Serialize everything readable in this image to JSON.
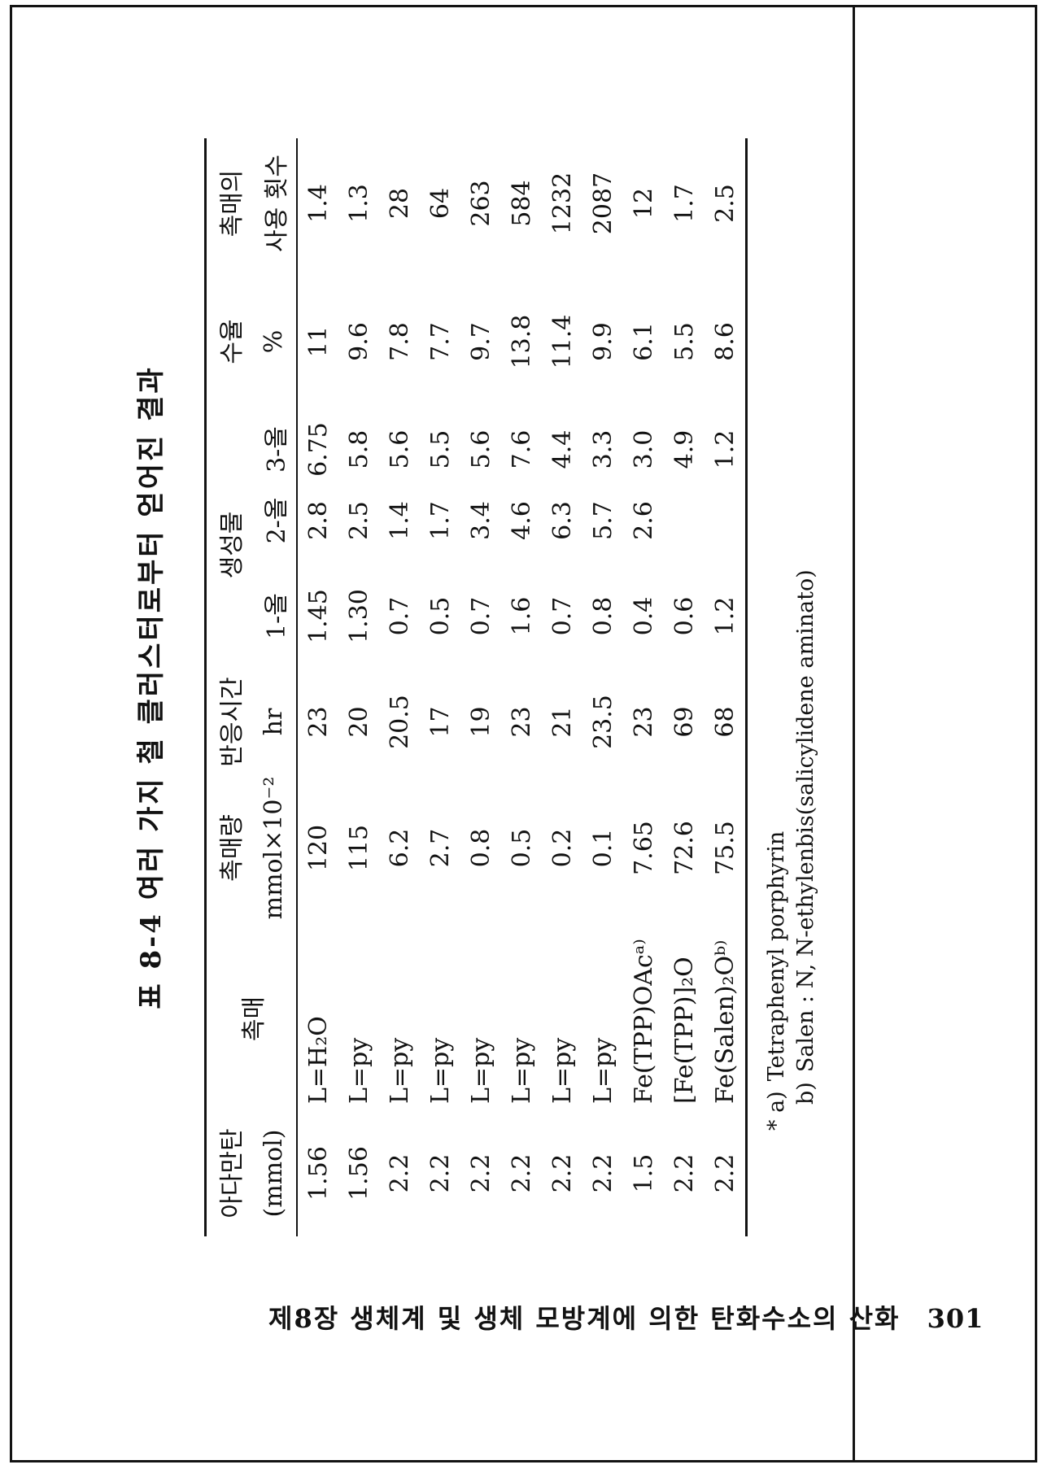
{
  "table": {
    "title": "표 8-4  여러 가지 철 클러스터로부터 얻어진 결과",
    "headers": {
      "adamantane": "아다만탄",
      "adamantane_unit": "(mmol)",
      "catalyst": "촉매",
      "amount": "촉매량",
      "amount_unit": "mmol×10⁻²",
      "time": "반응시간",
      "time_unit": "hr",
      "product": "생성물",
      "product_1ol": "1-올",
      "product_2ol": "2-올",
      "product_3ol": "3-올",
      "yield": "수율",
      "yield_unit": "%",
      "uses_line1": "촉매의",
      "uses_line2": "사용 횟수"
    },
    "rows": [
      {
        "cells": [
          "1.56",
          "L=H₂O",
          "120",
          "23",
          "1.45",
          "2.8",
          "6.75",
          "11",
          "1.4"
        ]
      },
      {
        "cells": [
          "1.56",
          "L=py",
          "115",
          "20",
          "1.30",
          "2.5",
          "5.8",
          "9.6",
          "1.3"
        ]
      },
      {
        "cells": [
          "2.2",
          "L=py",
          "6.2",
          "20.5",
          "0.7",
          "1.4",
          "5.6",
          "7.8",
          "28"
        ]
      },
      {
        "cells": [
          "2.2",
          "L=py",
          "2.7",
          "17",
          "0.5",
          "1.7",
          "5.5",
          "7.7",
          "64"
        ]
      },
      {
        "cells": [
          "2.2",
          "L=py",
          "0.8",
          "19",
          "0.7",
          "3.4",
          "5.6",
          "9.7",
          "263"
        ]
      },
      {
        "cells": [
          "2.2",
          "L=py",
          "0.5",
          "23",
          "1.6",
          "4.6",
          "7.6",
          "13.8",
          "584"
        ]
      },
      {
        "cells": [
          "2.2",
          "L=py",
          "0.2",
          "21",
          "0.7",
          "6.3",
          "4.4",
          "11.4",
          "1232"
        ]
      },
      {
        "cells": [
          "2.2",
          "L=py",
          "0.1",
          "23.5",
          "0.8",
          "5.7",
          "3.3",
          "9.9",
          "2087"
        ]
      },
      {
        "cells": [
          "1.5",
          "Fe(TPP)OAcᵃ⁾",
          "7.65",
          "23",
          "0.4",
          "2.6",
          "3.0",
          "6.1",
          "12"
        ]
      },
      {
        "cells": [
          "2.2",
          "[Fe(TPP)]₂O",
          "72.6",
          "69",
          "0.6",
          "",
          "4.9",
          "5.5",
          "1.7"
        ]
      },
      {
        "cells": [
          "2.2",
          "Fe(Salen)₂Oᵇ⁾",
          "75.5",
          "68",
          "1.2",
          "",
          "1.2",
          "8.6",
          "2.5"
        ]
      }
    ],
    "footnotes": [
      {
        "marker": "* a)",
        "text": "Tetraphenyl porphyrin"
      },
      {
        "marker": "b)",
        "text": "Salen : N, N-ethylenbis(salicylidene aminato)"
      }
    ]
  },
  "page": {
    "footer": {
      "chapter": "제8장 생체계 및 생체 모방계에 의한 탄화수소의 산화",
      "page_number": "301"
    }
  }
}
